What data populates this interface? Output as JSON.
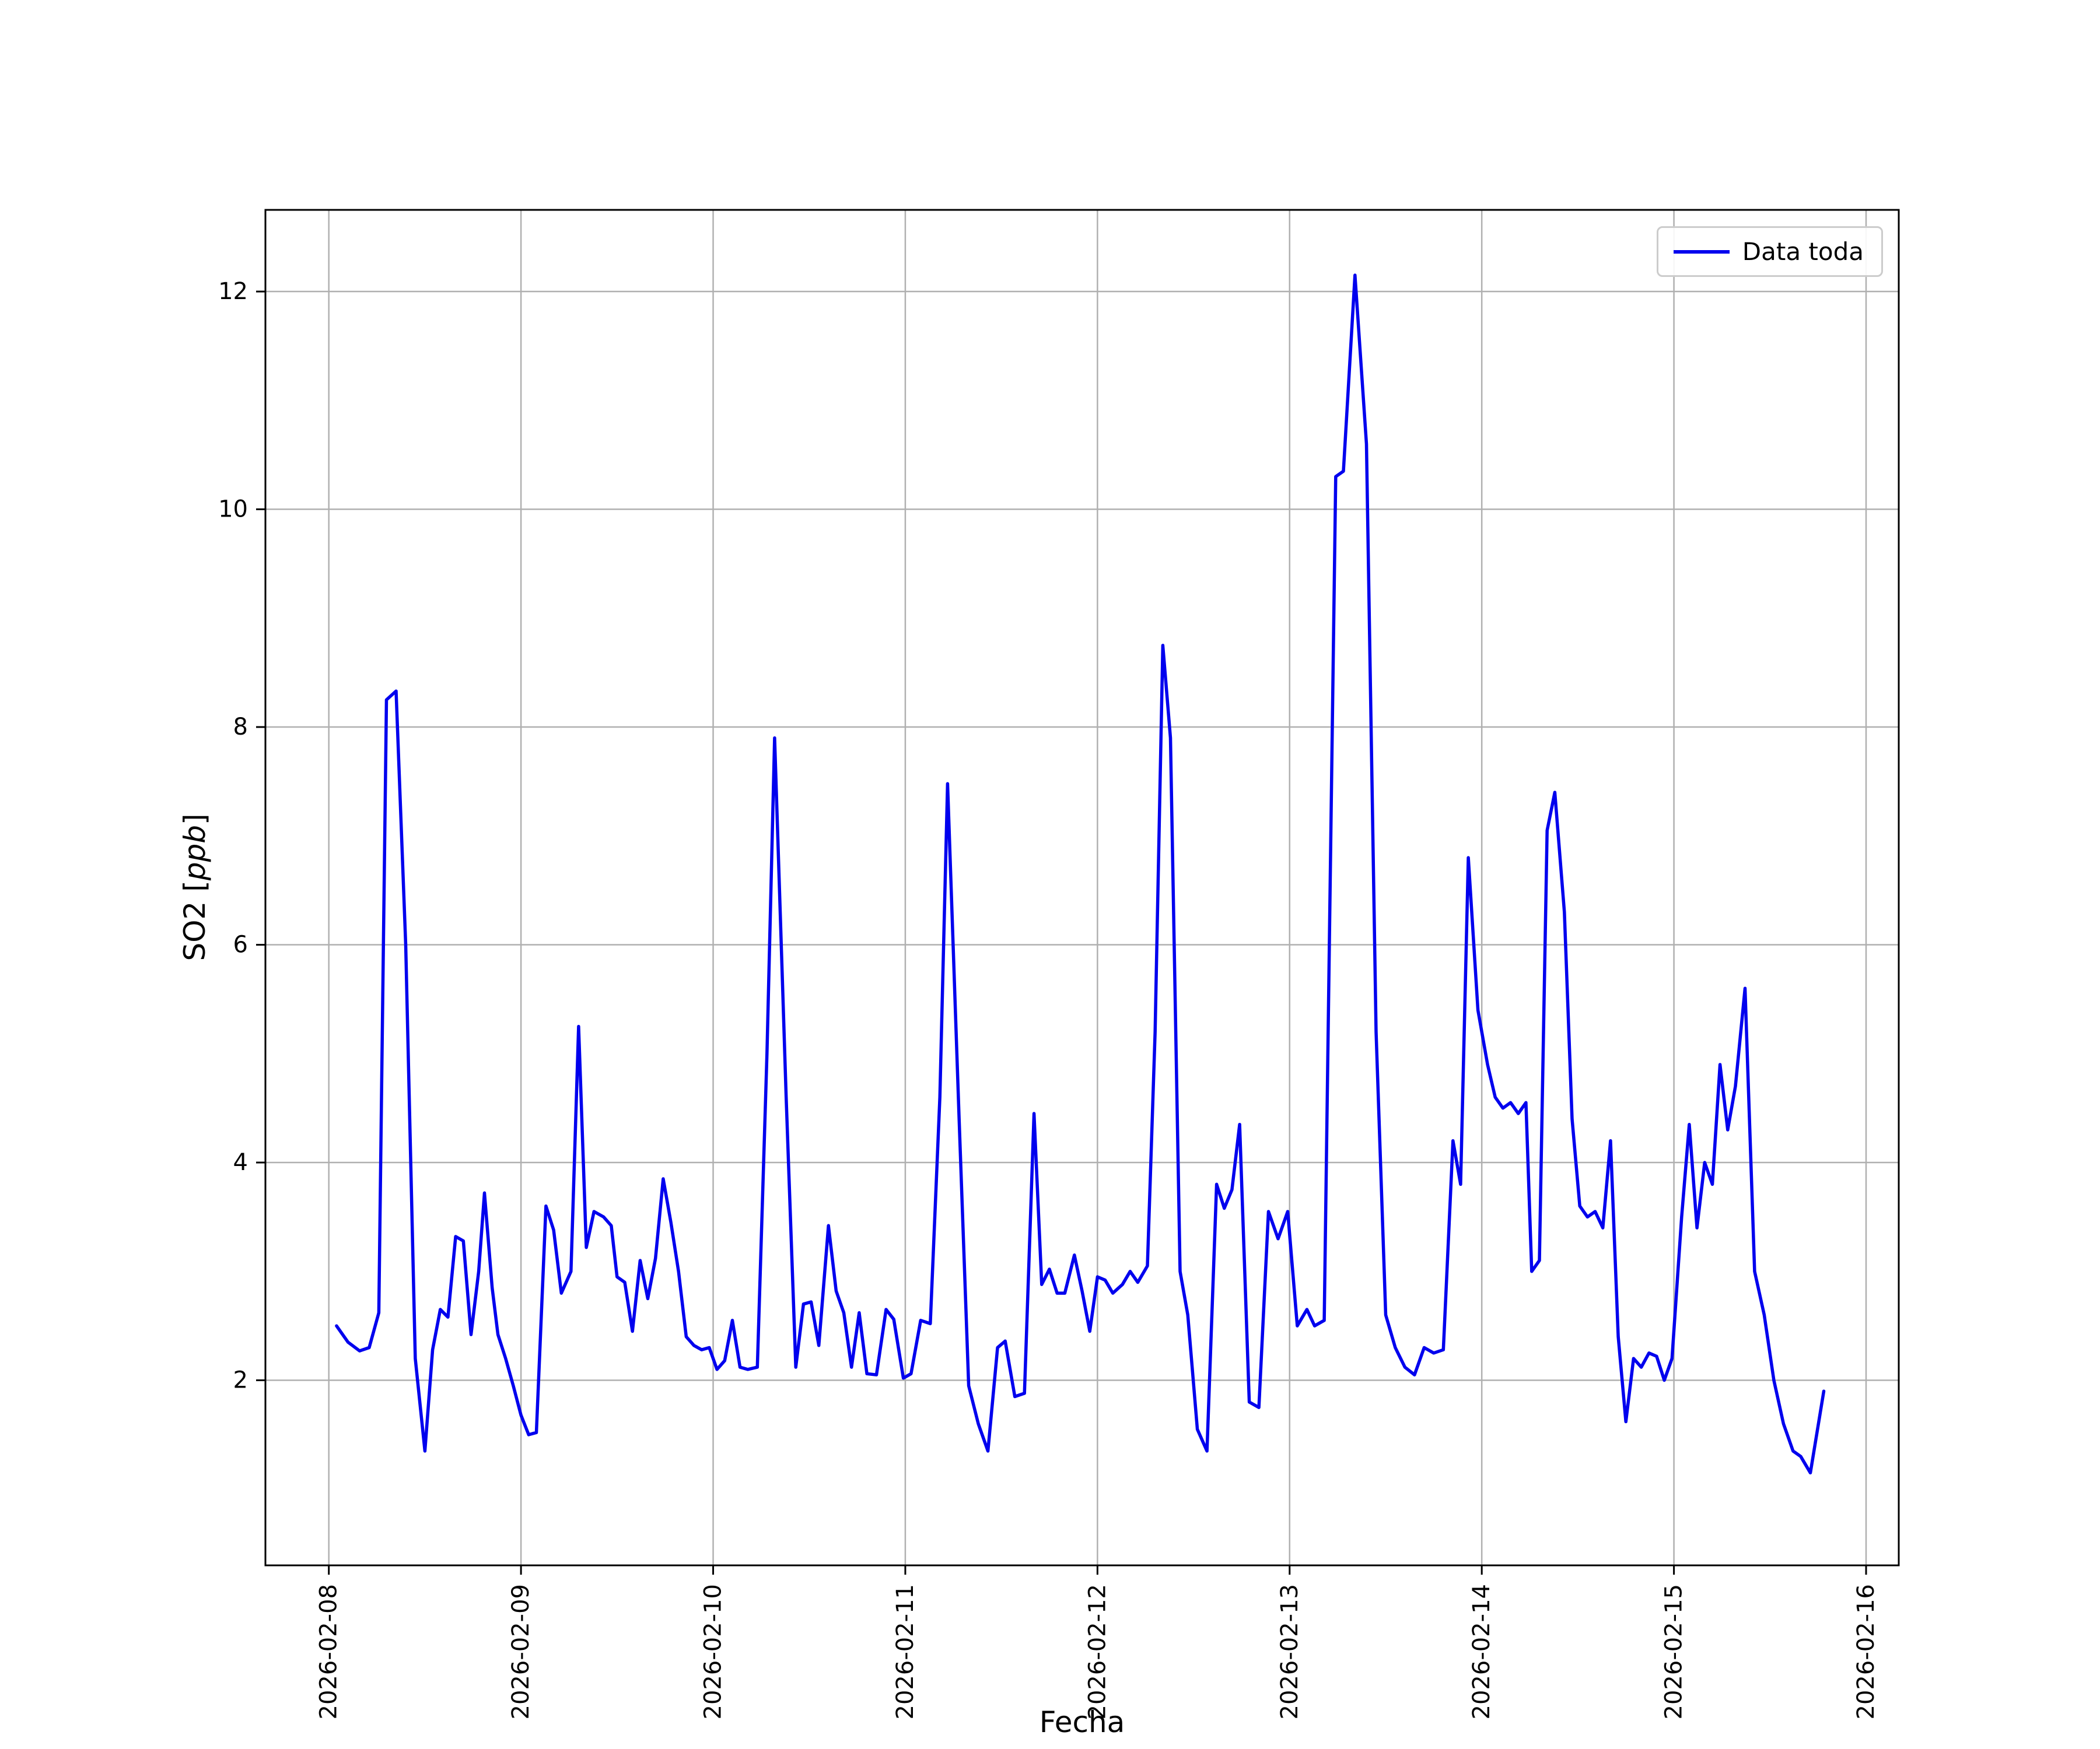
{
  "figure": {
    "background": "#ffffff"
  },
  "chart_data": {
    "type": "line",
    "title": "",
    "xlabel": "Fecha",
    "ylabel": "SO2 [ppb]",
    "ylabel_parts": {
      "prefix": "SO2 [",
      "italic": "ppb",
      "suffix": "]"
    },
    "legend_label": "Data toda",
    "legend_position": "upper right",
    "grid": true,
    "grid_color": "#b0b0b0",
    "x_tick_labels": [
      "2026-02-08",
      "2026-02-09",
      "2026-02-10",
      "2026-02-11",
      "2026-02-12",
      "2026-02-13",
      "2026-02-14",
      "2026-02-15",
      "2026-02-16"
    ],
    "x_ticks_days": [
      0,
      1,
      2,
      3,
      4,
      5,
      6,
      7,
      8
    ],
    "x_unit": "days since 2026-02-08 00:00",
    "y_ticks": [
      2,
      4,
      6,
      8,
      10,
      12
    ],
    "xlim_days": [
      -0.33,
      8.17
    ],
    "ylim": [
      0.3,
      12.75
    ],
    "series": [
      {
        "name": "Data toda",
        "color": "#0000ee",
        "points": [
          [
            0.04,
            2.5
          ],
          [
            0.1,
            2.35
          ],
          [
            0.16,
            2.27
          ],
          [
            0.21,
            2.3
          ],
          [
            0.26,
            2.62
          ],
          [
            0.3,
            8.25
          ],
          [
            0.35,
            8.33
          ],
          [
            0.4,
            6.0
          ],
          [
            0.45,
            2.2
          ],
          [
            0.5,
            1.35
          ],
          [
            0.54,
            2.28
          ],
          [
            0.58,
            2.65
          ],
          [
            0.62,
            2.58
          ],
          [
            0.66,
            3.32
          ],
          [
            0.7,
            3.28
          ],
          [
            0.74,
            2.42
          ],
          [
            0.78,
            3.0
          ],
          [
            0.81,
            3.72
          ],
          [
            0.85,
            2.85
          ],
          [
            0.88,
            2.42
          ],
          [
            0.92,
            2.2
          ],
          [
            0.96,
            1.95
          ],
          [
            1.0,
            1.68
          ],
          [
            1.04,
            1.5
          ],
          [
            1.08,
            1.52
          ],
          [
            1.13,
            3.6
          ],
          [
            1.17,
            3.38
          ],
          [
            1.21,
            2.8
          ],
          [
            1.26,
            3.0
          ],
          [
            1.3,
            5.25
          ],
          [
            1.34,
            3.22
          ],
          [
            1.38,
            3.55
          ],
          [
            1.43,
            3.5
          ],
          [
            1.47,
            3.42
          ],
          [
            1.5,
            2.95
          ],
          [
            1.54,
            2.9
          ],
          [
            1.58,
            2.45
          ],
          [
            1.62,
            3.1
          ],
          [
            1.66,
            2.75
          ],
          [
            1.7,
            3.12
          ],
          [
            1.74,
            3.85
          ],
          [
            1.78,
            3.45
          ],
          [
            1.82,
            3.0
          ],
          [
            1.86,
            2.4
          ],
          [
            1.9,
            2.32
          ],
          [
            1.94,
            2.28
          ],
          [
            1.98,
            2.3
          ],
          [
            2.02,
            2.1
          ],
          [
            2.06,
            2.18
          ],
          [
            2.1,
            2.55
          ],
          [
            2.14,
            2.12
          ],
          [
            2.18,
            2.1
          ],
          [
            2.23,
            2.12
          ],
          [
            2.28,
            5.0
          ],
          [
            2.32,
            7.9
          ],
          [
            2.38,
            4.6
          ],
          [
            2.43,
            2.12
          ],
          [
            2.47,
            2.7
          ],
          [
            2.51,
            2.72
          ],
          [
            2.55,
            2.32
          ],
          [
            2.6,
            3.42
          ],
          [
            2.64,
            2.82
          ],
          [
            2.68,
            2.62
          ],
          [
            2.72,
            2.12
          ],
          [
            2.76,
            2.62
          ],
          [
            2.8,
            2.06
          ],
          [
            2.85,
            2.05
          ],
          [
            2.9,
            2.65
          ],
          [
            2.94,
            2.56
          ],
          [
            2.99,
            2.02
          ],
          [
            3.03,
            2.06
          ],
          [
            3.08,
            2.55
          ],
          [
            3.13,
            2.52
          ],
          [
            3.18,
            4.6
          ],
          [
            3.22,
            7.48
          ],
          [
            3.28,
            4.4
          ],
          [
            3.33,
            1.95
          ],
          [
            3.38,
            1.6
          ],
          [
            3.43,
            1.35
          ],
          [
            3.48,
            2.3
          ],
          [
            3.52,
            2.36
          ],
          [
            3.57,
            1.85
          ],
          [
            3.62,
            1.88
          ],
          [
            3.67,
            4.45
          ],
          [
            3.71,
            2.88
          ],
          [
            3.75,
            3.02
          ],
          [
            3.79,
            2.8
          ],
          [
            3.83,
            2.8
          ],
          [
            3.88,
            3.15
          ],
          [
            3.92,
            2.82
          ],
          [
            3.96,
            2.45
          ],
          [
            4.0,
            2.95
          ],
          [
            4.04,
            2.92
          ],
          [
            4.08,
            2.8
          ],
          [
            4.13,
            2.88
          ],
          [
            4.17,
            3.0
          ],
          [
            4.21,
            2.9
          ],
          [
            4.26,
            3.05
          ],
          [
            4.3,
            5.2
          ],
          [
            4.34,
            8.75
          ],
          [
            4.38,
            7.9
          ],
          [
            4.43,
            3.0
          ],
          [
            4.47,
            2.6
          ],
          [
            4.52,
            1.55
          ],
          [
            4.57,
            1.35
          ],
          [
            4.62,
            3.8
          ],
          [
            4.66,
            3.58
          ],
          [
            4.7,
            3.75
          ],
          [
            4.74,
            4.35
          ],
          [
            4.79,
            1.8
          ],
          [
            4.84,
            1.75
          ],
          [
            4.89,
            3.55
          ],
          [
            4.94,
            3.3
          ],
          [
            4.99,
            3.55
          ],
          [
            5.04,
            2.5
          ],
          [
            5.09,
            2.65
          ],
          [
            5.13,
            2.5
          ],
          [
            5.18,
            2.55
          ],
          [
            5.24,
            10.3
          ],
          [
            5.28,
            10.35
          ],
          [
            5.34,
            12.15
          ],
          [
            5.4,
            10.6
          ],
          [
            5.45,
            5.2
          ],
          [
            5.5,
            2.6
          ],
          [
            5.55,
            2.3
          ],
          [
            5.6,
            2.12
          ],
          [
            5.65,
            2.05
          ],
          [
            5.7,
            2.3
          ],
          [
            5.75,
            2.25
          ],
          [
            5.8,
            2.28
          ],
          [
            5.85,
            4.2
          ],
          [
            5.89,
            3.8
          ],
          [
            5.93,
            6.8
          ],
          [
            5.98,
            5.4
          ],
          [
            6.03,
            4.9
          ],
          [
            6.07,
            4.6
          ],
          [
            6.11,
            4.5
          ],
          [
            6.15,
            4.55
          ],
          [
            6.19,
            4.45
          ],
          [
            6.23,
            4.55
          ],
          [
            6.26,
            3.0
          ],
          [
            6.3,
            3.1
          ],
          [
            6.34,
            7.05
          ],
          [
            6.38,
            7.4
          ],
          [
            6.43,
            6.3
          ],
          [
            6.47,
            4.4
          ],
          [
            6.51,
            3.6
          ],
          [
            6.55,
            3.5
          ],
          [
            6.59,
            3.55
          ],
          [
            6.63,
            3.4
          ],
          [
            6.67,
            4.2
          ],
          [
            6.71,
            2.4
          ],
          [
            6.75,
            1.62
          ],
          [
            6.79,
            2.2
          ],
          [
            6.83,
            2.12
          ],
          [
            6.87,
            2.25
          ],
          [
            6.91,
            2.22
          ],
          [
            6.95,
            2.0
          ],
          [
            6.99,
            2.2
          ],
          [
            7.04,
            3.5
          ],
          [
            7.08,
            4.35
          ],
          [
            7.12,
            3.4
          ],
          [
            7.16,
            4.0
          ],
          [
            7.2,
            3.8
          ],
          [
            7.24,
            4.9
          ],
          [
            7.28,
            4.3
          ],
          [
            7.32,
            4.7
          ],
          [
            7.37,
            5.6
          ],
          [
            7.42,
            3.0
          ],
          [
            7.47,
            2.6
          ],
          [
            7.52,
            2.0
          ],
          [
            7.57,
            1.6
          ],
          [
            7.62,
            1.35
          ],
          [
            7.66,
            1.3
          ],
          [
            7.71,
            1.15
          ],
          [
            7.78,
            1.9
          ]
        ]
      }
    ]
  }
}
